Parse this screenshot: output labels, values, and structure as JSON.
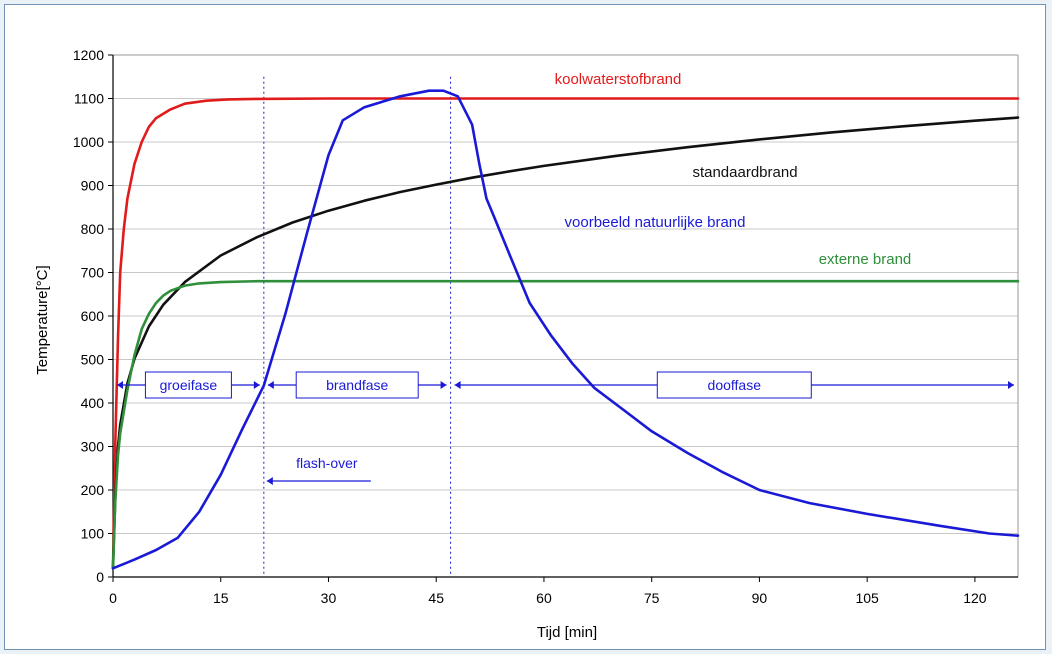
{
  "chart_data": {
    "type": "line",
    "xlabel": "Tijd [min]",
    "ylabel": "Temperature[°C]",
    "xlim": [
      0,
      126
    ],
    "ylim": [
      0,
      1200
    ],
    "xticks": [
      0,
      15,
      30,
      45,
      60,
      75,
      90,
      105,
      120
    ],
    "yticks": [
      0,
      100,
      200,
      300,
      400,
      500,
      600,
      700,
      800,
      900,
      1000,
      1100,
      1200
    ],
    "grid": "horizontal",
    "series": [
      {
        "name": "koolwaterstofbrand",
        "color": "#e11b1b",
        "points": [
          [
            0,
            20
          ],
          [
            0.3,
            300
          ],
          [
            0.7,
            550
          ],
          [
            1,
            700
          ],
          [
            1.5,
            800
          ],
          [
            2,
            870
          ],
          [
            3,
            950
          ],
          [
            4,
            1000
          ],
          [
            5,
            1035
          ],
          [
            6,
            1055
          ],
          [
            8,
            1075
          ],
          [
            10,
            1088
          ],
          [
            13,
            1095
          ],
          [
            16,
            1098
          ],
          [
            20,
            1099
          ],
          [
            30,
            1100
          ],
          [
            60,
            1100
          ],
          [
            90,
            1100
          ],
          [
            126,
            1100
          ]
        ]
      },
      {
        "name": "standaardbrand",
        "color": "#111111",
        "points": [
          [
            0,
            20
          ],
          [
            0.3,
            180
          ],
          [
            0.7,
            300
          ],
          [
            1,
            350
          ],
          [
            2,
            445
          ],
          [
            3,
            502
          ],
          [
            5,
            576
          ],
          [
            7,
            626
          ],
          [
            10,
            678
          ],
          [
            15,
            739
          ],
          [
            20,
            781
          ],
          [
            25,
            815
          ],
          [
            30,
            842
          ],
          [
            35,
            865
          ],
          [
            40,
            885
          ],
          [
            45,
            902
          ],
          [
            50,
            918
          ],
          [
            55,
            932
          ],
          [
            60,
            945
          ],
          [
            70,
            968
          ],
          [
            80,
            988
          ],
          [
            90,
            1006
          ],
          [
            100,
            1022
          ],
          [
            110,
            1036
          ],
          [
            120,
            1049
          ],
          [
            126,
            1056
          ]
        ]
      },
      {
        "name": "externe brand",
        "color": "#2f8f3a",
        "points": [
          [
            0,
            20
          ],
          [
            0.3,
            170
          ],
          [
            0.7,
            280
          ],
          [
            1,
            330
          ],
          [
            2,
            430
          ],
          [
            3,
            510
          ],
          [
            4,
            570
          ],
          [
            5,
            605
          ],
          [
            6,
            630
          ],
          [
            7,
            647
          ],
          [
            8,
            658
          ],
          [
            10,
            670
          ],
          [
            12,
            675
          ],
          [
            15,
            678
          ],
          [
            20,
            680
          ],
          [
            30,
            680
          ],
          [
            60,
            680
          ],
          [
            90,
            680
          ],
          [
            126,
            680
          ]
        ]
      },
      {
        "name": "voorbeeld natuurlijke brand",
        "color": "#1a1ad6",
        "points": [
          [
            0,
            20
          ],
          [
            3,
            40
          ],
          [
            6,
            62
          ],
          [
            9,
            90
          ],
          [
            12,
            150
          ],
          [
            15,
            235
          ],
          [
            18,
            340
          ],
          [
            21,
            440
          ],
          [
            24,
            605
          ],
          [
            27,
            790
          ],
          [
            30,
            970
          ],
          [
            32,
            1050
          ],
          [
            35,
            1080
          ],
          [
            40,
            1105
          ],
          [
            44,
            1118
          ],
          [
            46,
            1118
          ],
          [
            48,
            1105
          ],
          [
            50,
            1040
          ],
          [
            51,
            950
          ],
          [
            52,
            870
          ],
          [
            53,
            830
          ],
          [
            55,
            750
          ],
          [
            58,
            630
          ],
          [
            61,
            555
          ],
          [
            64,
            490
          ],
          [
            67,
            435
          ],
          [
            71,
            385
          ],
          [
            75,
            335
          ],
          [
            80,
            285
          ],
          [
            85,
            240
          ],
          [
            90,
            200
          ],
          [
            97,
            170
          ],
          [
            105,
            145
          ],
          [
            115,
            118
          ],
          [
            122,
            100
          ],
          [
            126,
            95
          ]
        ]
      }
    ],
    "annotations": {
      "phases": [
        {
          "label": "groeifase",
          "x_start": 0,
          "x_end": 21,
          "y": 440
        },
        {
          "label": "brandfase",
          "x_start": 21,
          "x_end": 47,
          "y": 440
        },
        {
          "label": "dooffase",
          "x_start": 47,
          "x_end": 126,
          "y": 440
        }
      ],
      "flashover": {
        "label": "flash-over",
        "x": 21,
        "y": 225
      },
      "vlines": [
        21,
        47
      ]
    }
  }
}
